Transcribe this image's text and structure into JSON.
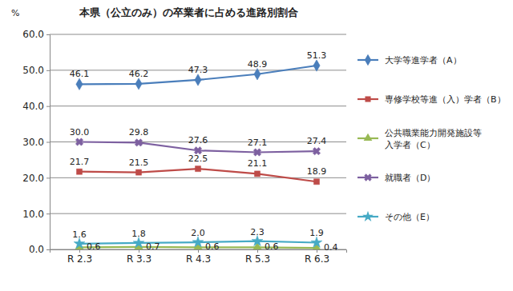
{
  "chart_data": {
    "type": "line",
    "title": "本県（公立のみ）の卒業者に占める進路別割合",
    "y_label": "%",
    "categories": [
      "R 2.3",
      "R 3.3",
      "R 4.3",
      "R 5.3",
      "R 6.3"
    ],
    "ylim": [
      0,
      60
    ],
    "yticks": [
      {
        "value": 0,
        "label": "0.0"
      },
      {
        "value": 10,
        "label": "10.0"
      },
      {
        "value": 20,
        "label": "20.0"
      },
      {
        "value": 30,
        "label": "30.0"
      },
      {
        "value": 40,
        "label": "40.0"
      },
      {
        "value": 50,
        "label": "50.0"
      },
      {
        "value": 60,
        "label": "60.0"
      }
    ],
    "grid": true,
    "legend": "right",
    "data_labels": true,
    "series": [
      {
        "name": "大学等進学者（A）",
        "color": "#4a7ebb",
        "marker": "diamond",
        "values": [
          46.1,
          46.2,
          47.3,
          48.9,
          51.3
        ],
        "value_labels": [
          "46.1",
          "46.2",
          "47.3",
          "48.9",
          "51.3"
        ]
      },
      {
        "name": "専修学校等進（入）学者（B）",
        "color": "#be4b48",
        "marker": "square",
        "values": [
          21.7,
          21.5,
          22.5,
          21.1,
          18.9
        ],
        "value_labels": [
          "21.7",
          "21.5",
          "22.5",
          "21.1",
          "18.9"
        ]
      },
      {
        "name": "公共職業能力開発施設等\n入学者（C）",
        "color": "#98b954",
        "marker": "triangle",
        "values": [
          0.6,
          0.7,
          0.6,
          0.6,
          0.4
        ],
        "value_labels": [
          "0.6",
          "0.7",
          "0.6",
          "0.6",
          "0.4"
        ]
      },
      {
        "name": "就職者（D）",
        "color": "#7d60a0",
        "marker": "x",
        "values": [
          30.0,
          29.8,
          27.6,
          27.1,
          27.4
        ],
        "value_labels": [
          "30.0",
          "29.8",
          "27.6",
          "27.1",
          "27.4"
        ]
      },
      {
        "name": "その他（E）",
        "color": "#46aac5",
        "marker": "star",
        "values": [
          1.6,
          1.8,
          2.0,
          2.3,
          1.9
        ],
        "value_labels": [
          "1.6",
          "1.8",
          "2.0",
          "2.3",
          "1.9"
        ]
      }
    ]
  }
}
